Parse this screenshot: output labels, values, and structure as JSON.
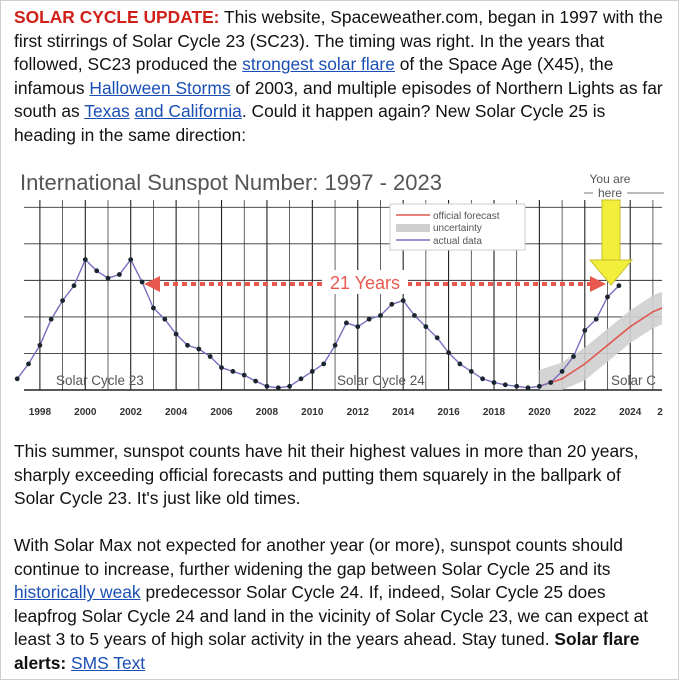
{
  "article": {
    "p1": {
      "lead": "SOLAR CYCLE UPDATE:",
      "t1": " This website, Spaceweather.com, began in 1997 with the first stirrings of Solar Cycle 23 (SC23). The timing was right. In the years that followed, SC23 produced the ",
      "link1": "strongest solar flare",
      "t2": " of the Space Age (X45), the infamous ",
      "link2": "Halloween Storms",
      "t3": " of 2003, and multiple episodes of Northern Lights as far south as ",
      "link3": "Texas",
      "t4": " ",
      "link4": "and California",
      "t5": ". Could it happen again? New Solar Cycle 25 is heading in the same direction:"
    },
    "p2": "This summer, sunspot counts have hit their highest values in more than 20 years, sharply exceeding official forecasts and putting them squarely in the ballpark of Solar Cycle 23. It's just like old times.",
    "p3": {
      "t1": "With Solar Max not expected for another year (or more), sunspot counts should continue to increase, further widening the gap between Solar Cycle 25 and its ",
      "link1": "historically weak",
      "t2": " predecessor Solar Cycle 24. If, indeed, Solar Cycle 25 does leapfrog Solar Cycle 24 and land in the vicinity of Solar Cycle 23, we can expect at least 3 to 5 years of high solar activity in the years ahead. Stay tuned. ",
      "bold": "Solar flare alerts:",
      "t3": " ",
      "link2": "SMS Text"
    }
  },
  "chart_data": {
    "type": "line",
    "title": "International Sunspot Number: 1997 - 2023",
    "xlim": [
      1997.3,
      2025.4
    ],
    "ylim": [
      0,
      255
    ],
    "x_ticks": [
      "1998",
      "2000",
      "2002",
      "2004",
      "2006",
      "2008",
      "2010",
      "2012",
      "2014",
      "2016",
      "2018",
      "2020",
      "2022",
      "2024",
      "2"
    ],
    "legend": {
      "placement": "top-right",
      "entries": [
        "official forecast",
        "uncertainty",
        "actual data"
      ]
    },
    "annotations": {
      "cycle23": "Solar Cycle 23",
      "cycle24": "Solar Cycle 24",
      "cycle25": "Solar C",
      "span": "21 Years",
      "you_are": "You are",
      "here": "here"
    },
    "series": [
      {
        "name": "actual data",
        "x": [
          1997.0,
          1997.5,
          1998.0,
          1998.5,
          1999.0,
          1999.5,
          2000.0,
          2000.5,
          2001.0,
          2001.5,
          2002.0,
          2002.5,
          2003.0,
          2003.5,
          2004.0,
          2004.5,
          2005.0,
          2005.5,
          2006.0,
          2006.5,
          2007.0,
          2007.5,
          2008.0,
          2008.5,
          2009.0,
          2009.5,
          2010.0,
          2010.5,
          2011.0,
          2011.5,
          2012.0,
          2012.5,
          2013.0,
          2013.5,
          2014.0,
          2014.5,
          2015.0,
          2015.5,
          2016.0,
          2016.5,
          2017.0,
          2017.5,
          2018.0,
          2018.5,
          2019.0,
          2019.5,
          2020.0,
          2020.5,
          2021.0,
          2021.5,
          2022.0,
          2022.5,
          2023.0,
          2023.5
        ],
        "y": [
          15,
          35,
          60,
          95,
          120,
          140,
          175,
          160,
          150,
          155,
          175,
          145,
          110,
          95,
          75,
          60,
          55,
          45,
          30,
          25,
          20,
          12,
          5,
          3,
          5,
          15,
          25,
          35,
          60,
          90,
          85,
          95,
          100,
          115,
          120,
          100,
          85,
          70,
          50,
          35,
          25,
          15,
          10,
          7,
          5,
          3,
          5,
          10,
          25,
          45,
          80,
          95,
          125,
          140
        ]
      },
      {
        "name": "official forecast",
        "x": [
          2020.0,
          2021.0,
          2022.0,
          2023.0,
          2024.0,
          2024.5,
          2025.0,
          2025.4
        ],
        "y": [
          5,
          15,
          35,
          60,
          85,
          95,
          105,
          110
        ]
      }
    ]
  }
}
